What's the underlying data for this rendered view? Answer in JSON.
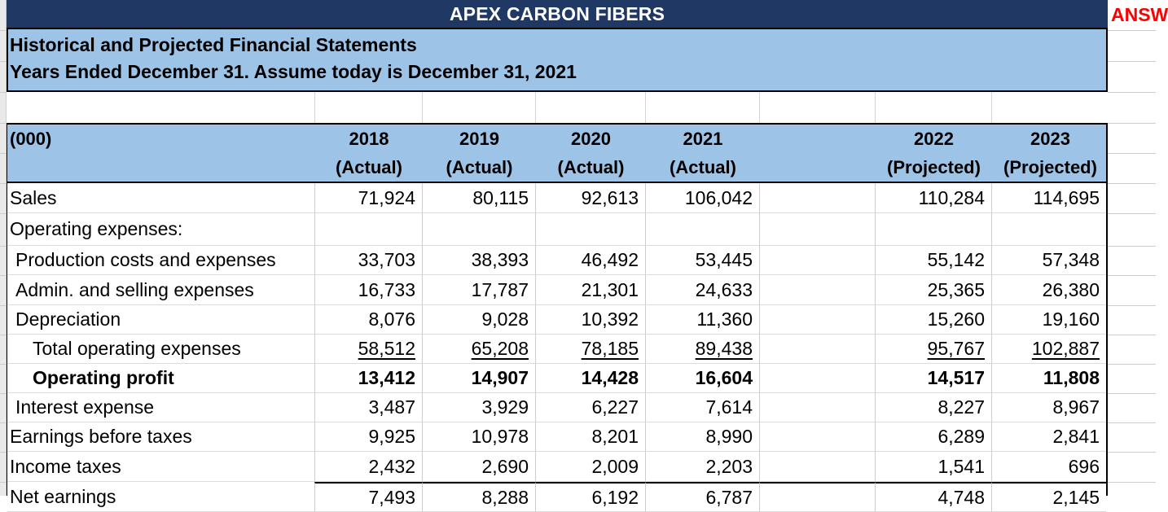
{
  "sheet": {
    "title": "APEX CARBON FIBERS",
    "answer_text": "ANSW",
    "banner": {
      "line1": "Historical and Projected Financial Statements",
      "line2": "Years Ended December 31. Assume today is December 31, 2021"
    },
    "colors": {
      "title_bar_navy": "#1f3864",
      "header_light_blue": "#9dc3e6",
      "answer_red": "#ff0000"
    },
    "table": {
      "units_label": "(000)",
      "columns": [
        {
          "year": "2018",
          "kind": "(Actual)"
        },
        {
          "year": "2019",
          "kind": "(Actual)"
        },
        {
          "year": "2020",
          "kind": "(Actual)"
        },
        {
          "year": "2021",
          "kind": "(Actual)"
        },
        {
          "year": "",
          "kind": ""
        },
        {
          "year": "2022",
          "kind": "(Projected)"
        },
        {
          "year": "2023",
          "kind": "(Projected)"
        }
      ],
      "rows": [
        {
          "label": "Sales",
          "indent": 0,
          "bold": false,
          "underline": false,
          "topline": false,
          "values": [
            "71,924",
            "80,115",
            "92,613",
            "106,042",
            "",
            "110,284",
            "114,695"
          ]
        },
        {
          "label": "Operating expenses:",
          "indent": 0,
          "bold": false,
          "underline": false,
          "topline": false,
          "values": [
            "",
            "",
            "",
            "",
            "",
            "",
            ""
          ]
        },
        {
          "label": "Production costs and expenses",
          "indent": 1,
          "bold": false,
          "underline": false,
          "topline": false,
          "values": [
            "33,703",
            "38,393",
            "46,492",
            "53,445",
            "",
            "55,142",
            "57,348"
          ]
        },
        {
          "label": "Admin. and selling expenses",
          "indent": 1,
          "bold": false,
          "underline": false,
          "topline": false,
          "values": [
            "16,733",
            "17,787",
            "21,301",
            "24,633",
            "",
            "25,365",
            "26,380"
          ]
        },
        {
          "label": "Depreciation",
          "indent": 1,
          "bold": false,
          "underline": false,
          "topline": false,
          "values": [
            "8,076",
            "9,028",
            "10,392",
            "11,360",
            "",
            "15,260",
            "19,160"
          ]
        },
        {
          "label": "Total operating expenses",
          "indent": 2,
          "bold": false,
          "underline": true,
          "topline": false,
          "values": [
            "58,512",
            "65,208",
            "78,185",
            "89,438",
            "",
            "95,767",
            "102,887"
          ]
        },
        {
          "label": "Operating profit",
          "indent": 2,
          "bold": true,
          "underline": false,
          "topline": false,
          "values": [
            "13,412",
            "14,907",
            "14,428",
            "16,604",
            "",
            "14,517",
            "11,808"
          ]
        },
        {
          "label": "Interest expense",
          "indent": 1,
          "bold": false,
          "underline": false,
          "topline": false,
          "values": [
            "3,487",
            "3,929",
            "6,227",
            "7,614",
            "",
            "8,227",
            "8,967"
          ]
        },
        {
          "label": "Earnings before taxes",
          "indent": 0,
          "bold": false,
          "underline": false,
          "topline": false,
          "values": [
            "9,925",
            "10,978",
            "8,201",
            "8,990",
            "",
            "6,289",
            "2,841"
          ]
        },
        {
          "label": "Income taxes",
          "indent": 0,
          "bold": false,
          "underline": false,
          "topline": false,
          "values": [
            "2,432",
            "2,690",
            "2,009",
            "2,203",
            "",
            "1,541",
            "696"
          ]
        },
        {
          "label": "Net earnings",
          "indent": 0,
          "bold": false,
          "underline": false,
          "topline": true,
          "values": [
            "7,493",
            "8,288",
            "6,192",
            "6,787",
            "",
            "4,748",
            "2,145"
          ]
        }
      ]
    }
  }
}
